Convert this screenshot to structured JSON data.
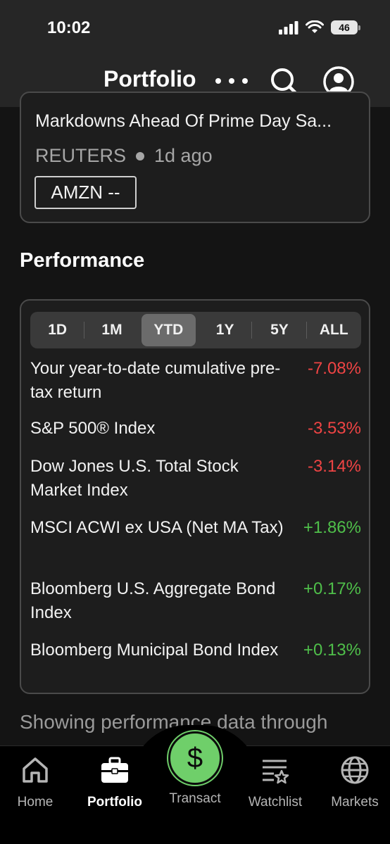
{
  "status_bar": {
    "time": "10:02",
    "battery": "46"
  },
  "header": {
    "title": "Portfolio"
  },
  "news": {
    "headline": "Markdowns Ahead Of Prime Day Sa...",
    "source": "REUTERS",
    "age": "1d ago",
    "ticker": "AMZN --"
  },
  "performance": {
    "title": "Performance",
    "periods": [
      "1D",
      "1M",
      "YTD",
      "1Y",
      "5Y",
      "ALL"
    ],
    "selected_period": "YTD",
    "rows": [
      {
        "label": "Your year-to-date cumulative pre-tax return",
        "value": "-7.08%",
        "trend": "negative"
      },
      {
        "label": "S&P 500® Index",
        "value": "-3.53%",
        "trend": "negative"
      },
      {
        "label": "Dow Jones U.S. Total Stock Market Index",
        "value": "-3.14%",
        "trend": "negative"
      },
      {
        "label": "MSCI ACWI ex USA (Net MA Tax)",
        "value": "+1.86%",
        "trend": "positive"
      },
      {
        "label": "Bloomberg U.S. Aggregate Bond Index",
        "value": "+0.17%",
        "trend": "positive"
      },
      {
        "label": "Bloomberg Municipal Bond Index",
        "value": "+0.13%",
        "trend": "positive"
      }
    ],
    "footer_note": "Showing performance data through"
  },
  "tabs": {
    "home": "Home",
    "portfolio": "Portfolio",
    "transact": "Transact",
    "transact_symbol": "$",
    "watchlist": "Watchlist",
    "markets": "Markets",
    "active": "Portfolio"
  },
  "colors": {
    "negative": "#ef4444",
    "positive": "#4fbf4a",
    "transact_accent": "#6fcf6a"
  }
}
